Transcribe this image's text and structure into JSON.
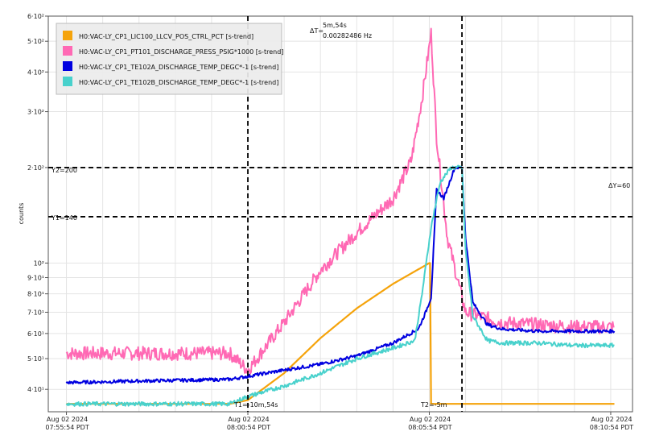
{
  "chart_data": {
    "type": "line",
    "title": "",
    "xlabel": "",
    "ylabel": "counts",
    "yscale": "log",
    "ylim": [
      34,
      600
    ],
    "xlim_minutes": [
      -0.5,
      15.6
    ],
    "grid": true,
    "legend_position": "top-left",
    "y_ticks": [
      {
        "value": 40,
        "label": "4·10¹"
      },
      {
        "value": 50,
        "label": "5·10¹"
      },
      {
        "value": 60,
        "label": "6·10¹"
      },
      {
        "value": 70,
        "label": "7·10¹"
      },
      {
        "value": 80,
        "label": "8·10¹"
      },
      {
        "value": 90,
        "label": "9·10¹"
      },
      {
        "value": 100,
        "label": "10²"
      },
      {
        "value": 200,
        "label": "2·10²"
      },
      {
        "value": 300,
        "label": "3·10²"
      },
      {
        "value": 400,
        "label": "4·10²"
      },
      {
        "value": 500,
        "label": "5·10²"
      },
      {
        "value": 600,
        "label": "6·10²"
      }
    ],
    "x_ticks": [
      {
        "minute": 0,
        "date": "Aug 02 2024",
        "time": "07:55:54 PDT"
      },
      {
        "minute": 5,
        "date": "Aug 02 2024",
        "time": "08:00:54 PDT"
      },
      {
        "minute": 10,
        "date": "Aug 02 2024",
        "time": "08:05:54 PDT"
      },
      {
        "minute": 15,
        "date": "Aug 02 2024",
        "time": "08:10:54 PDT"
      }
    ],
    "series": [
      {
        "name": "H0:VAC-LY_CP1_LIC100_LLCV_POS_CTRL_PCT [s-trend]",
        "color": "#f5a30a",
        "x": [
          0,
          4.5,
          5,
          6,
          7,
          8,
          9,
          10,
          10.02,
          10.05,
          15.1
        ],
        "y": [
          36,
          36,
          37,
          45,
          58,
          72,
          86,
          100,
          100,
          36,
          36
        ]
      },
      {
        "name": "H0:VAC-LY_CP1_PT101_DISCHARGE_PRESS_PSIG*1000 [s-trend]",
        "color": "#ff69b4",
        "x": [
          0,
          2,
          4.5,
          5,
          6,
          7,
          8,
          9,
          9.5,
          9.8,
          10.05,
          10.2,
          10.5,
          11,
          12,
          13,
          14,
          15.1
        ],
        "y": [
          52,
          52,
          52,
          46,
          65,
          95,
          125,
          160,
          210,
          330,
          530,
          250,
          120,
          70,
          65,
          64,
          63,
          63
        ]
      },
      {
        "name": "H0:VAC-LY_CP1_TE102A_DISCHARGE_TEMP_DEGC*-1 [s-trend]",
        "color": "#0000e0",
        "x": [
          0,
          2,
          4.5,
          5,
          6,
          7,
          8,
          9,
          9.7,
          9.9,
          10.05,
          10.2,
          10.4,
          10.7,
          10.9,
          11,
          11.2,
          11.6,
          12,
          13,
          14,
          15.1
        ],
        "y": [
          42,
          42.5,
          43,
          44,
          46,
          48,
          51,
          56,
          62,
          70,
          78,
          170,
          160,
          200,
          200,
          120,
          75,
          64,
          62,
          61,
          61,
          61
        ]
      },
      {
        "name": "H0:VAC-LY_CP1_TE102B_DISCHARGE_TEMP_DEGC*-1 [s-trend]",
        "color": "#48d1cc",
        "x": [
          0,
          2,
          4.5,
          5,
          6,
          7,
          8,
          9,
          9.6,
          9.8,
          10.05,
          10.3,
          10.6,
          10.9,
          11,
          11.2,
          11.6,
          12,
          13,
          14,
          15.1
        ],
        "y": [
          36,
          36,
          36,
          38,
          41,
          45,
          50,
          54,
          57,
          80,
          130,
          180,
          200,
          200,
          110,
          68,
          57,
          56,
          56,
          55,
          55
        ]
      }
    ],
    "cursors": {
      "t1_label": "T1=-10m,54s",
      "t2_label": "T2=-5m",
      "y1_label": "Y1=140",
      "y2_label": "Y2=200",
      "dy_label": "ΔY=60",
      "dt_prefix": "ΔT=",
      "dt_value": "5m,54s",
      "dt_freq": "0.00282486 Hz",
      "t1_minute": 5,
      "t2_minute": 10.9,
      "y1_value": 140,
      "y2_value": 200
    }
  }
}
